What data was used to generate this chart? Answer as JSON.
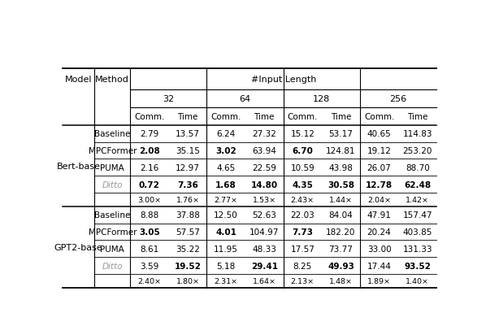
{
  "header_input_length": "#Input Length",
  "col_groups": [
    "32",
    "64",
    "128",
    "256"
  ],
  "col_sub": [
    "Comm.",
    "Time"
  ],
  "bert_base": {
    "Baseline": [
      "2.79",
      "13.57",
      "6.24",
      "27.32",
      "15.12",
      "53.17",
      "40.65",
      "114.83"
    ],
    "MPCFormer": [
      "2.08",
      "35.15",
      "3.02",
      "63.94",
      "6.70",
      "124.81",
      "19.12",
      "253.20"
    ],
    "PUMA": [
      "2.16",
      "12.97",
      "4.65",
      "22.59",
      "10.59",
      "43.98",
      "26.07",
      "88.70"
    ],
    "Ditto": [
      "0.72",
      "7.36",
      "1.68",
      "14.80",
      "4.35",
      "30.58",
      "12.78",
      "62.48"
    ],
    "ratio": [
      "3.00×",
      "1.76×",
      "2.77×",
      "1.53×",
      "2.43×",
      "1.44×",
      "2.04×",
      "1.42×"
    ]
  },
  "gpt2_base": {
    "Baseline": [
      "8.88",
      "37.88",
      "12.50",
      "52.63",
      "22.03",
      "84.04",
      "47.91",
      "157.47"
    ],
    "MPCFormer": [
      "3.05",
      "57.57",
      "4.01",
      "104.97",
      "7.73",
      "182.20",
      "20.24",
      "403.85"
    ],
    "PUMA": [
      "8.61",
      "35.22",
      "11.95",
      "48.33",
      "17.57",
      "73.77",
      "33.00",
      "131.33"
    ],
    "Ditto": [
      "3.59",
      "19.52",
      "5.18",
      "29.41",
      "8.25",
      "49.93",
      "17.44",
      "93.52"
    ],
    "ratio": [
      "2.40×",
      "1.80×",
      "2.31×",
      "1.64×",
      "2.13×",
      "1.48×",
      "1.89×",
      "1.40×"
    ]
  },
  "bert_bold": [
    [
      false,
      false,
      false,
      false,
      false,
      false,
      false,
      false
    ],
    [
      true,
      false,
      true,
      false,
      true,
      false,
      false,
      false
    ],
    [
      false,
      false,
      false,
      false,
      false,
      false,
      false,
      false
    ],
    [
      true,
      true,
      true,
      true,
      true,
      true,
      true,
      true
    ],
    [
      false,
      false,
      false,
      false,
      false,
      false,
      false,
      false
    ]
  ],
  "gpt2_bold": [
    [
      false,
      false,
      false,
      false,
      false,
      false,
      false,
      false
    ],
    [
      true,
      false,
      true,
      false,
      true,
      false,
      false,
      false
    ],
    [
      false,
      false,
      false,
      false,
      false,
      false,
      false,
      false
    ],
    [
      false,
      true,
      false,
      true,
      false,
      true,
      false,
      true
    ],
    [
      false,
      false,
      false,
      false,
      false,
      false,
      false,
      false
    ]
  ],
  "background_color": "#ffffff",
  "fs_header": 8.0,
  "fs_data": 7.5,
  "fs_ratio": 6.8,
  "fs_model": 8.0
}
